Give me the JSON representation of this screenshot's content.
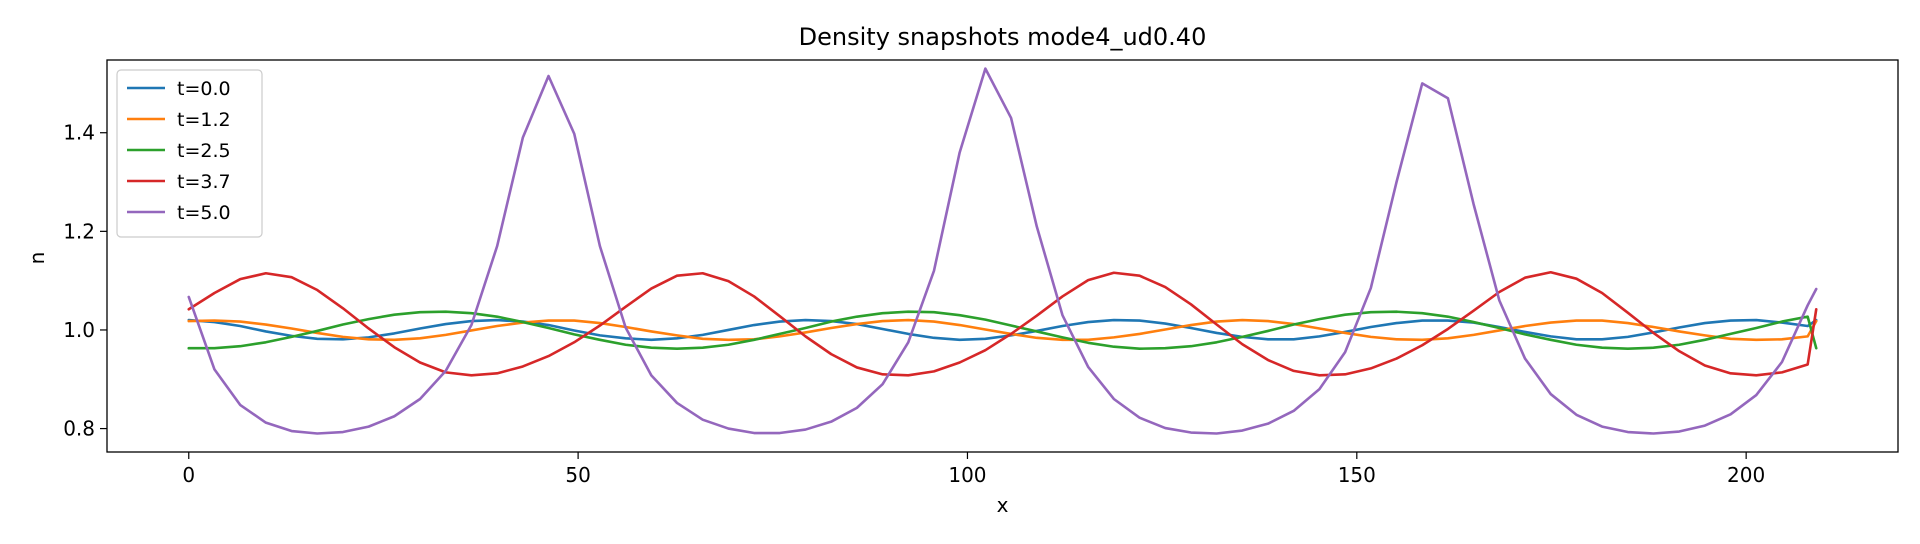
{
  "chart_data": {
    "type": "line",
    "title": "Density snapshots  mode4_ud0.40",
    "xlabel": "x",
    "ylabel": "n",
    "xlim": [
      -10.5,
      219.5
    ],
    "ylim": [
      0.7525,
      1.5475
    ],
    "xticks": [
      0,
      50,
      100,
      150,
      200
    ],
    "yticks": [
      0.8,
      1.0,
      1.2,
      1.4
    ],
    "xtick_labels": [
      "0",
      "50",
      "100",
      "150",
      "200"
    ],
    "ytick_labels": [
      "0.8",
      "1.0",
      "1.2",
      "1.4"
    ],
    "legend_position": "top-left",
    "grid": false,
    "x": [
      0,
      3.3,
      6.6,
      9.9,
      13.2,
      16.5,
      19.8,
      23.1,
      26.4,
      29.7,
      33,
      36.3,
      39.6,
      42.9,
      46.2,
      49.5,
      52.8,
      56.1,
      59.4,
      62.7,
      66,
      69.3,
      72.6,
      75.9,
      79.2,
      82.5,
      85.8,
      89.1,
      92.4,
      95.7,
      99,
      102.3,
      105.6,
      108.9,
      112.2,
      115.5,
      118.8,
      122.1,
      125.4,
      128.7,
      132,
      135.3,
      138.6,
      141.9,
      145.2,
      148.5,
      151.8,
      155.1,
      158.4,
      161.7,
      165,
      168.3,
      171.6,
      174.9,
      178.2,
      181.5,
      184.8,
      188.1,
      191.4,
      194.7,
      198,
      201.3,
      204.6,
      207.9,
      209
    ],
    "series": [
      {
        "name": "t=0.0",
        "color": "#1f77b4",
        "values": [
          1.02,
          1.016,
          1.008,
          0.997,
          0.988,
          0.982,
          0.981,
          0.985,
          0.993,
          1.003,
          1.012,
          1.018,
          1.02,
          1.017,
          1.01,
          0.999,
          0.989,
          0.983,
          0.98,
          0.983,
          0.99,
          1.0,
          1.01,
          1.017,
          1.02,
          1.018,
          1.012,
          1.002,
          0.992,
          0.984,
          0.98,
          0.982,
          0.989,
          0.998,
          1.008,
          1.016,
          1.02,
          1.019,
          1.013,
          1.004,
          0.994,
          0.986,
          0.981,
          0.981,
          0.987,
          0.996,
          1.006,
          1.014,
          1.019,
          1.019,
          1.015,
          1.006,
          0.996,
          0.987,
          0.981,
          0.981,
          0.986,
          0.995,
          1.005,
          1.014,
          1.019,
          1.02,
          1.015,
          1.008,
          1.02
        ]
      },
      {
        "name": "t=1.2",
        "color": "#ff7f0e",
        "values": [
          1.018,
          1.019,
          1.017,
          1.011,
          1.003,
          0.994,
          0.986,
          0.981,
          0.98,
          0.983,
          0.99,
          0.999,
          1.008,
          1.015,
          1.019,
          1.019,
          1.014,
          1.006,
          0.997,
          0.989,
          0.982,
          0.98,
          0.981,
          0.987,
          0.995,
          1.004,
          1.012,
          1.018,
          1.02,
          1.017,
          1.01,
          1.001,
          0.992,
          0.984,
          0.98,
          0.98,
          0.985,
          0.992,
          1.001,
          1.01,
          1.017,
          1.02,
          1.018,
          1.012,
          1.003,
          0.994,
          0.986,
          0.981,
          0.98,
          0.983,
          0.99,
          0.999,
          1.008,
          1.015,
          1.019,
          1.019,
          1.014,
          1.006,
          0.997,
          0.989,
          0.982,
          0.98,
          0.981,
          0.987,
          1.018
        ]
      },
      {
        "name": "t=2.5",
        "color": "#2ca02c",
        "values": [
          0.963,
          0.963,
          0.967,
          0.975,
          0.986,
          0.998,
          1.011,
          1.022,
          1.031,
          1.036,
          1.037,
          1.034,
          1.027,
          1.016,
          1.004,
          0.991,
          0.98,
          0.97,
          0.964,
          0.962,
          0.964,
          0.97,
          0.98,
          0.992,
          1.004,
          1.017,
          1.027,
          1.034,
          1.037,
          1.036,
          1.03,
          1.021,
          1.009,
          0.997,
          0.985,
          0.974,
          0.966,
          0.962,
          0.963,
          0.967,
          0.975,
          0.986,
          0.998,
          1.011,
          1.022,
          1.031,
          1.036,
          1.037,
          1.034,
          1.027,
          1.016,
          1.004,
          0.991,
          0.98,
          0.97,
          0.964,
          0.962,
          0.964,
          0.97,
          0.98,
          0.992,
          1.004,
          1.017,
          1.027,
          0.963
        ]
      },
      {
        "name": "t=3.7",
        "color": "#d62728",
        "values": [
          1.042,
          1.075,
          1.103,
          1.115,
          1.107,
          1.081,
          1.044,
          1.003,
          0.965,
          0.934,
          0.914,
          0.908,
          0.912,
          0.926,
          0.947,
          0.975,
          1.009,
          1.047,
          1.084,
          1.11,
          1.115,
          1.099,
          1.068,
          1.028,
          0.987,
          0.951,
          0.924,
          0.91,
          0.908,
          0.916,
          0.934,
          0.959,
          0.992,
          1.029,
          1.068,
          1.101,
          1.116,
          1.11,
          1.087,
          1.052,
          1.011,
          0.971,
          0.939,
          0.917,
          0.908,
          0.91,
          0.922,
          0.942,
          0.969,
          1.002,
          1.039,
          1.077,
          1.106,
          1.117,
          1.104,
          1.075,
          1.035,
          0.994,
          0.957,
          0.928,
          0.912,
          0.908,
          0.914,
          0.93,
          1.042
        ]
      },
      {
        "name": "t=5.0",
        "color": "#9467bd",
        "values": [
          1.067,
          0.92,
          0.848,
          0.812,
          0.795,
          0.79,
          0.793,
          0.804,
          0.825,
          0.86,
          0.917,
          1.01,
          1.17,
          1.39,
          1.515,
          1.398,
          1.17,
          1.005,
          0.908,
          0.852,
          0.818,
          0.8,
          0.791,
          0.791,
          0.798,
          0.814,
          0.842,
          0.89,
          0.975,
          1.12,
          1.36,
          1.53,
          1.43,
          1.21,
          1.03,
          0.925,
          0.86,
          0.822,
          0.801,
          0.792,
          0.79,
          0.796,
          0.81,
          0.836,
          0.88,
          0.955,
          1.085,
          1.3,
          1.5,
          1.47,
          1.255,
          1.06,
          0.942,
          0.87,
          0.828,
          0.804,
          0.793,
          0.79,
          0.794,
          0.806,
          0.829,
          0.868,
          0.935,
          1.05,
          1.083
        ]
      }
    ]
  }
}
